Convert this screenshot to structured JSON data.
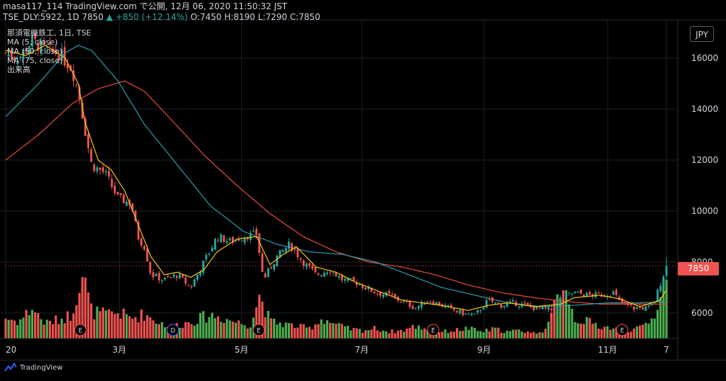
{
  "header": {
    "line1": "masa117_114 TradingView.com で公開, 12月 06, 2020 11:50:32 JST",
    "line2_prefix": "TSE_DLY:5922, 1D 7850",
    "change": "▲ +850 (+12.14%)",
    "ohlc": "O:7450 H:8190 L:7290 C:7850"
  },
  "legend": {
    "title": "那須電機鉄工, 1日, TSE",
    "ma5": "MA (5, close)",
    "ma50": "MA (50, close)",
    "ma75": "MA (75, close)",
    "volume": "出来高"
  },
  "currency": "JPY",
  "last_price_label": "7850",
  "brand": "TradingView",
  "colors": {
    "up": "#26a69a",
    "down": "#ef5350",
    "vol_up": "#4caf50",
    "vol_down": "#ef5350",
    "ma5": "#f5c518",
    "ma50": "#26a0b0",
    "ma75": "#e74c3c",
    "event_marker": "#ef5350",
    "dividend_marker": "#2962ff"
  },
  "chart_data": {
    "type": "candlestick",
    "title": "那須電機鉄工, 1日, TSE",
    "ylim": [
      5000,
      17500
    ],
    "yticks": [
      6000,
      8000,
      10000,
      12000,
      14000,
      16000
    ],
    "yticks_labels": [
      "6000",
      "8000",
      "10000",
      "12000",
      "14000",
      "16000"
    ],
    "xticks": [
      {
        "label": "20",
        "t": 0.0
      },
      {
        "label": "3月",
        "t": 0.172
      },
      {
        "label": "5月",
        "t": 0.357
      },
      {
        "label": "7月",
        "t": 0.539
      },
      {
        "label": "9月",
        "t": 0.724
      },
      {
        "label": "11月",
        "t": 0.911
      },
      {
        "label": "7",
        "t": 1.0
      }
    ],
    "close_path": [
      [
        0.0,
        16200
      ],
      [
        0.02,
        16000
      ],
      [
        0.04,
        16700
      ],
      [
        0.06,
        16300
      ],
      [
        0.08,
        16200
      ],
      [
        0.1,
        15600
      ],
      [
        0.11,
        14700
      ],
      [
        0.12,
        13200
      ],
      [
        0.13,
        11800
      ],
      [
        0.15,
        11500
      ],
      [
        0.17,
        10500
      ],
      [
        0.19,
        10300
      ],
      [
        0.2,
        9000
      ],
      [
        0.21,
        8600
      ],
      [
        0.22,
        7500
      ],
      [
        0.24,
        7300
      ],
      [
        0.26,
        7500
      ],
      [
        0.28,
        7000
      ],
      [
        0.3,
        8000
      ],
      [
        0.32,
        9000
      ],
      [
        0.34,
        8800
      ],
      [
        0.36,
        9000
      ],
      [
        0.38,
        9100
      ],
      [
        0.39,
        7300
      ],
      [
        0.41,
        8200
      ],
      [
        0.43,
        8700
      ],
      [
        0.45,
        8000
      ],
      [
        0.47,
        7500
      ],
      [
        0.49,
        7700
      ],
      [
        0.51,
        7300
      ],
      [
        0.53,
        7200
      ],
      [
        0.56,
        6800
      ],
      [
        0.58,
        6700
      ],
      [
        0.62,
        6200
      ],
      [
        0.64,
        6500
      ],
      [
        0.66,
        6300
      ],
      [
        0.69,
        6000
      ],
      [
        0.71,
        5900
      ],
      [
        0.73,
        6500
      ],
      [
        0.75,
        6300
      ],
      [
        0.77,
        6400
      ],
      [
        0.8,
        6200
      ],
      [
        0.83,
        6100
      ],
      [
        0.84,
        6600
      ],
      [
        0.86,
        6800
      ],
      [
        0.88,
        6700
      ],
      [
        0.9,
        6700
      ],
      [
        0.92,
        6800
      ],
      [
        0.93,
        6400
      ],
      [
        0.95,
        6200
      ],
      [
        0.97,
        6200
      ],
      [
        0.98,
        6300
      ],
      [
        0.99,
        7100
      ],
      [
        1.0,
        7850
      ]
    ],
    "series": [
      {
        "name": "MA (5, close)",
        "path": [
          [
            0.0,
            16300
          ],
          [
            0.03,
            16100
          ],
          [
            0.06,
            16500
          ],
          [
            0.09,
            16000
          ],
          [
            0.11,
            15000
          ],
          [
            0.12,
            13500
          ],
          [
            0.14,
            12000
          ],
          [
            0.16,
            11600
          ],
          [
            0.18,
            10800
          ],
          [
            0.2,
            9500
          ],
          [
            0.22,
            8200
          ],
          [
            0.24,
            7500
          ],
          [
            0.26,
            7600
          ],
          [
            0.28,
            7400
          ],
          [
            0.3,
            7700
          ],
          [
            0.32,
            8400
          ],
          [
            0.35,
            8900
          ],
          [
            0.38,
            9000
          ],
          [
            0.4,
            7900
          ],
          [
            0.42,
            8300
          ],
          [
            0.44,
            8600
          ],
          [
            0.47,
            7800
          ],
          [
            0.5,
            7600
          ],
          [
            0.53,
            7200
          ],
          [
            0.56,
            6900
          ],
          [
            0.6,
            6500
          ],
          [
            0.63,
            6400
          ],
          [
            0.66,
            6300
          ],
          [
            0.7,
            6100
          ],
          [
            0.73,
            6300
          ],
          [
            0.76,
            6400
          ],
          [
            0.8,
            6250
          ],
          [
            0.84,
            6350
          ],
          [
            0.86,
            6600
          ],
          [
            0.9,
            6700
          ],
          [
            0.93,
            6550
          ],
          [
            0.96,
            6250
          ],
          [
            0.99,
            6500
          ],
          [
            1.0,
            6900
          ]
        ]
      },
      {
        "name": "MA (50, close)",
        "path": [
          [
            0.0,
            13700
          ],
          [
            0.05,
            15000
          ],
          [
            0.09,
            16200
          ],
          [
            0.11,
            16500
          ],
          [
            0.13,
            16300
          ],
          [
            0.17,
            15100
          ],
          [
            0.21,
            13400
          ],
          [
            0.26,
            11800
          ],
          [
            0.31,
            10200
          ],
          [
            0.36,
            9200
          ],
          [
            0.41,
            8700
          ],
          [
            0.46,
            8400
          ],
          [
            0.51,
            8300
          ],
          [
            0.56,
            8000
          ],
          [
            0.61,
            7500
          ],
          [
            0.66,
            7000
          ],
          [
            0.71,
            6700
          ],
          [
            0.76,
            6400
          ],
          [
            0.81,
            6250
          ],
          [
            0.86,
            6300
          ],
          [
            0.91,
            6400
          ],
          [
            0.96,
            6400
          ],
          [
            1.0,
            6450
          ]
        ]
      },
      {
        "name": "MA (75, close)",
        "path": [
          [
            0.0,
            12000
          ],
          [
            0.05,
            13000
          ],
          [
            0.1,
            14200
          ],
          [
            0.14,
            14800
          ],
          [
            0.18,
            15100
          ],
          [
            0.21,
            14700
          ],
          [
            0.25,
            13600
          ],
          [
            0.3,
            12200
          ],
          [
            0.35,
            11000
          ],
          [
            0.4,
            9900
          ],
          [
            0.45,
            9000
          ],
          [
            0.5,
            8400
          ],
          [
            0.55,
            8000
          ],
          [
            0.6,
            7800
          ],
          [
            0.65,
            7500
          ],
          [
            0.7,
            7100
          ],
          [
            0.75,
            6800
          ],
          [
            0.8,
            6600
          ],
          [
            0.85,
            6450
          ],
          [
            0.9,
            6350
          ],
          [
            0.95,
            6350
          ],
          [
            1.0,
            6350
          ]
        ]
      }
    ],
    "volume_note": "daily volume bars at bottom; large spikes near late Feb (t≈0.115), early May (t≈0.385), mid Oct (t≈0.845) and the final day (t≈1.00)",
    "volume_profile": [
      [
        0.0,
        0.3
      ],
      [
        0.02,
        0.25
      ],
      [
        0.04,
        0.45
      ],
      [
        0.06,
        0.22
      ],
      [
        0.08,
        0.28
      ],
      [
        0.1,
        0.35
      ],
      [
        0.115,
        1.0
      ],
      [
        0.13,
        0.4
      ],
      [
        0.15,
        0.35
      ],
      [
        0.17,
        0.38
      ],
      [
        0.19,
        0.3
      ],
      [
        0.21,
        0.36
      ],
      [
        0.23,
        0.25
      ],
      [
        0.25,
        0.18
      ],
      [
        0.27,
        0.22
      ],
      [
        0.29,
        0.28
      ],
      [
        0.31,
        0.35
      ],
      [
        0.33,
        0.3
      ],
      [
        0.35,
        0.24
      ],
      [
        0.37,
        0.2
      ],
      [
        0.385,
        0.65
      ],
      [
        0.4,
        0.25
      ],
      [
        0.42,
        0.22
      ],
      [
        0.44,
        0.18
      ],
      [
        0.46,
        0.15
      ],
      [
        0.48,
        0.3
      ],
      [
        0.5,
        0.2
      ],
      [
        0.52,
        0.14
      ],
      [
        0.54,
        0.12
      ],
      [
        0.56,
        0.15
      ],
      [
        0.58,
        0.1
      ],
      [
        0.6,
        0.12
      ],
      [
        0.62,
        0.18
      ],
      [
        0.64,
        0.14
      ],
      [
        0.66,
        0.1
      ],
      [
        0.68,
        0.12
      ],
      [
        0.7,
        0.15
      ],
      [
        0.72,
        0.1
      ],
      [
        0.74,
        0.14
      ],
      [
        0.76,
        0.1
      ],
      [
        0.78,
        0.12
      ],
      [
        0.8,
        0.08
      ],
      [
        0.82,
        0.15
      ],
      [
        0.845,
        0.9
      ],
      [
        0.86,
        0.3
      ],
      [
        0.88,
        0.25
      ],
      [
        0.9,
        0.18
      ],
      [
        0.92,
        0.15
      ],
      [
        0.94,
        0.12
      ],
      [
        0.96,
        0.15
      ],
      [
        0.98,
        0.3
      ],
      [
        1.0,
        0.95
      ]
    ],
    "event_markers": [
      {
        "label": "E",
        "t": 0.113,
        "kind": "earnings"
      },
      {
        "label": "D",
        "t": 0.253,
        "kind": "dividend"
      },
      {
        "label": "E",
        "t": 0.383,
        "kind": "earnings"
      },
      {
        "label": "E",
        "t": 0.647,
        "kind": "earnings"
      },
      {
        "label": "E",
        "t": 0.933,
        "kind": "earnings"
      }
    ],
    "last_price": 7850
  }
}
